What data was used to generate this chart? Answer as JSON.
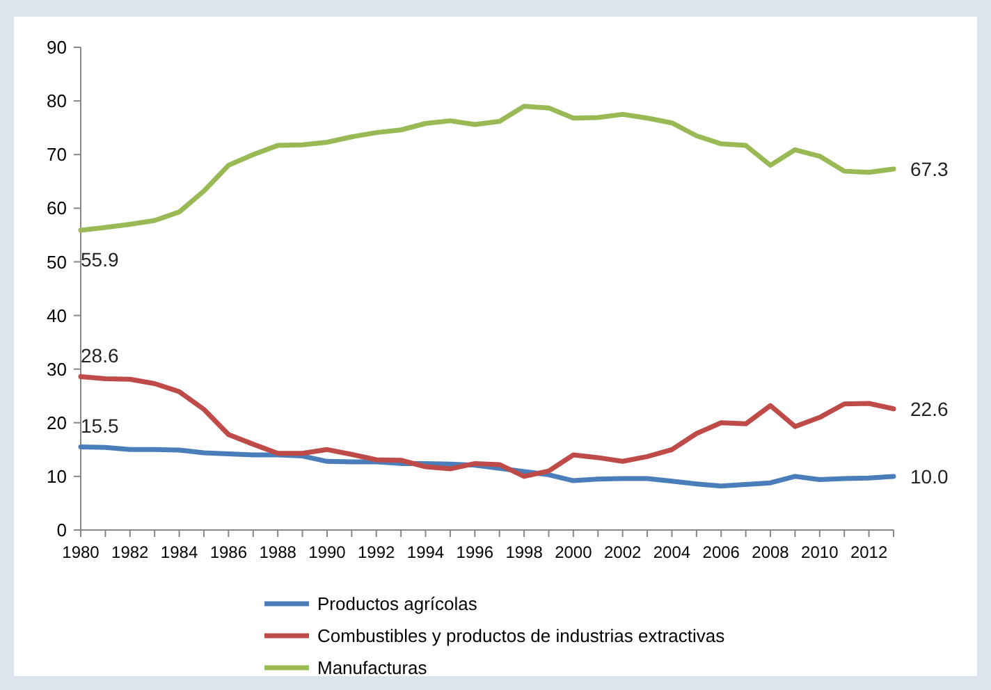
{
  "chart_data": {
    "type": "line",
    "x": [
      1980,
      1981,
      1982,
      1983,
      1984,
      1985,
      1986,
      1987,
      1988,
      1989,
      1990,
      1991,
      1992,
      1993,
      1994,
      1995,
      1996,
      1997,
      1998,
      1999,
      2000,
      2001,
      2002,
      2003,
      2004,
      2005,
      2006,
      2007,
      2008,
      2009,
      2010,
      2011,
      2012,
      2013
    ],
    "series": [
      {
        "name": "Productos agrícolas",
        "color": "#4a7ebb",
        "values": [
          15.5,
          15.4,
          15.0,
          15.0,
          14.9,
          14.4,
          14.2,
          14.0,
          14.0,
          13.8,
          12.8,
          12.7,
          12.7,
          12.4,
          12.4,
          12.3,
          12.1,
          11.5,
          10.9,
          10.3,
          9.2,
          9.5,
          9.6,
          9.6,
          9.1,
          8.6,
          8.2,
          8.5,
          8.8,
          10.0,
          9.4,
          9.6,
          9.7,
          10.0
        ],
        "value_labels": [
          "15.5",
          null,
          null,
          null,
          null,
          null,
          null,
          null,
          null,
          null,
          null,
          null,
          null,
          null,
          null,
          null,
          null,
          null,
          null,
          null,
          null,
          null,
          null,
          null,
          null,
          null,
          null,
          null,
          null,
          null,
          null,
          null,
          null,
          "10.0"
        ]
      },
      {
        "name": "Combustibles y productos de industrias extractivas",
        "color": "#be4b48",
        "values": [
          28.6,
          28.2,
          28.1,
          27.3,
          25.8,
          22.5,
          17.8,
          16.0,
          14.3,
          14.3,
          15.0,
          14.1,
          13.1,
          13.0,
          11.8,
          11.4,
          12.4,
          12.2,
          10.0,
          11.0,
          14.0,
          13.5,
          12.8,
          13.7,
          15.0,
          18.0,
          20.0,
          19.8,
          23.2,
          19.3,
          21.0,
          23.5,
          23.6,
          22.6
        ],
        "value_labels": [
          "28.6",
          null,
          null,
          null,
          null,
          null,
          null,
          null,
          null,
          null,
          null,
          null,
          null,
          null,
          null,
          null,
          null,
          null,
          null,
          null,
          null,
          null,
          null,
          null,
          null,
          null,
          null,
          null,
          null,
          null,
          null,
          null,
          null,
          "22.6"
        ]
      },
      {
        "name": "Manufacturas",
        "color": "#98b954",
        "values": [
          55.9,
          56.4,
          57.0,
          57.7,
          59.3,
          63.2,
          68.0,
          70.0,
          71.7,
          71.8,
          72.3,
          73.3,
          74.1,
          74.6,
          75.8,
          76.3,
          75.6,
          76.2,
          79.0,
          78.7,
          76.8,
          76.9,
          77.5,
          76.8,
          75.9,
          73.5,
          72.0,
          71.7,
          68.0,
          70.9,
          69.7,
          66.9,
          66.7,
          67.3
        ],
        "value_labels": [
          "55.9",
          null,
          null,
          null,
          null,
          null,
          null,
          null,
          null,
          null,
          null,
          null,
          null,
          null,
          null,
          null,
          null,
          null,
          null,
          null,
          null,
          null,
          null,
          null,
          null,
          null,
          null,
          null,
          null,
          null,
          null,
          null,
          null,
          "67.3"
        ]
      }
    ],
    "xlim": [
      1980,
      2013
    ],
    "xticks": [
      1980,
      {
        "value": 1981,
        "label": null
      },
      1982,
      {
        "value": 1983,
        "label": null
      },
      1984,
      {
        "value": 1985,
        "label": null
      },
      1986,
      {
        "value": 1987,
        "label": null
      },
      1988,
      {
        "value": 1989,
        "label": null
      },
      1990,
      {
        "value": 1991,
        "label": null
      },
      1992,
      {
        "value": 1993,
        "label": null
      },
      1994,
      {
        "value": 1995,
        "label": null
      },
      1996,
      {
        "value": 1997,
        "label": null
      },
      1998,
      {
        "value": 1999,
        "label": null
      },
      2000,
      {
        "value": 2001,
        "label": null
      },
      2002,
      {
        "value": 2003,
        "label": null
      },
      2004,
      {
        "value": 2005,
        "label": null
      },
      2006,
      {
        "value": 2007,
        "label": null
      },
      2008,
      {
        "value": 2009,
        "label": null
      },
      2010,
      {
        "value": 2011,
        "label": null
      },
      2012,
      {
        "value": 2013,
        "label": null
      }
    ],
    "ylim": [
      0,
      90
    ],
    "yticks": [
      0,
      10,
      20,
      30,
      40,
      50,
      60,
      70,
      80,
      90
    ],
    "grid": false,
    "legend": "bottom",
    "marker": "none",
    "line_style": "solid"
  }
}
